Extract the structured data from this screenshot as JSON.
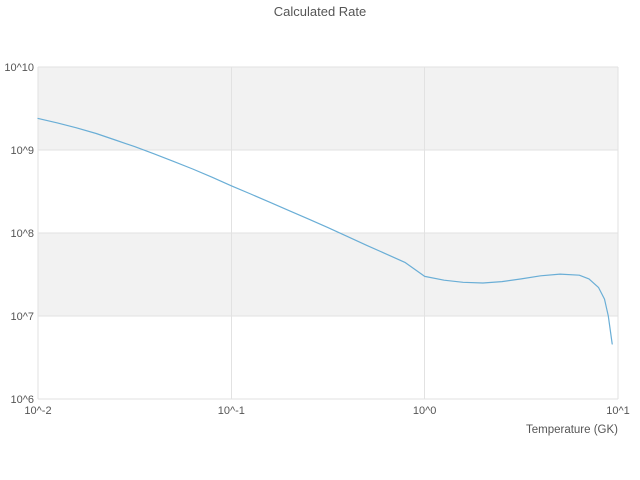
{
  "title": "Calculated Rate",
  "x_axis": {
    "label": "Temperature (GK)",
    "tick_labels": [
      "10^-2",
      "10^-1",
      "10^0",
      "10^1"
    ],
    "tick_log_values": [
      -2,
      -1,
      0,
      1
    ],
    "log_range": [
      -2,
      1
    ]
  },
  "y_axis": {
    "tick_labels": [
      "10^10",
      "10^9",
      "10^8",
      "10^7",
      "10^6"
    ],
    "tick_log_values": [
      10,
      9,
      8,
      7,
      6
    ],
    "log_range": [
      6,
      10
    ]
  },
  "colors": {
    "line": "#6aaed6",
    "band": "#f2f2f2",
    "grid": "#e2e2e2",
    "text": "#555555"
  },
  "chart_data": {
    "type": "line",
    "title": "Calculated Rate",
    "xlabel": "Temperature (GK)",
    "ylabel": "",
    "x_scale": "log",
    "y_scale": "log",
    "xlim": [
      0.01,
      10
    ],
    "ylim": [
      1000000,
      10000000000
    ],
    "grid": true,
    "legend": "none",
    "series": [
      {
        "name": "Calculated Rate",
        "points": [
          [
            0.01,
            2400000000.0
          ],
          [
            0.0126,
            2120000000.0
          ],
          [
            0.0158,
            1850000000.0
          ],
          [
            0.02,
            1580000000.0
          ],
          [
            0.0251,
            1320000000.0
          ],
          [
            0.0316,
            1100000000.0
          ],
          [
            0.0398,
            900000000.0
          ],
          [
            0.0501,
            730000000.0
          ],
          [
            0.0631,
            590000000.0
          ],
          [
            0.0794,
            470000000.0
          ],
          [
            0.1,
            370000000.0
          ],
          [
            0.126,
            295000000.0
          ],
          [
            0.158,
            235000000.0
          ],
          [
            0.2,
            185000000.0
          ],
          [
            0.251,
            147000000.0
          ],
          [
            0.316,
            116000000.0
          ],
          [
            0.398,
            91000000.0
          ],
          [
            0.501,
            71000000.0
          ],
          [
            0.631,
            56000000.0
          ],
          [
            0.794,
            44000000.0
          ],
          [
            1.0,
            30000000.0
          ],
          [
            1.26,
            27000000.0
          ],
          [
            1.58,
            25500000.0
          ],
          [
            2.0,
            25000000.0
          ],
          [
            2.51,
            26000000.0
          ],
          [
            3.16,
            28000000.0
          ],
          [
            3.98,
            30500000.0
          ],
          [
            5.01,
            32000000.0
          ],
          [
            6.31,
            31000000.0
          ],
          [
            7.08,
            28000000.0
          ],
          [
            7.94,
            22000000.0
          ],
          [
            8.51,
            16000000.0
          ],
          [
            8.91,
            10000000.0
          ],
          [
            9.33,
            4600000.0
          ]
        ]
      }
    ]
  }
}
